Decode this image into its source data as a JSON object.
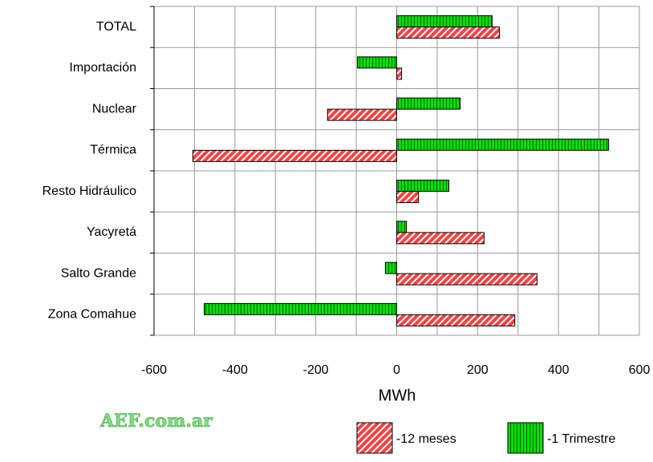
{
  "chart_data": {
    "type": "hbar",
    "xlabel": "MWh",
    "watermark": "AEF.com.ar",
    "categories": [
      "TOTAL",
      "Importación",
      "Nuclear",
      "Térmica",
      "Resto Hidráulico",
      "Yacyretá",
      "Salto Grande",
      "Zona Comahue"
    ],
    "series": [
      {
        "name": "-1 Trimestre",
        "color": "#00e000",
        "values": [
          236,
          -97,
          157,
          524,
          129,
          24,
          -28,
          -476
        ]
      },
      {
        "name": "-12 meses",
        "color": "#ff4040",
        "values": [
          254,
          12,
          -171,
          -504,
          54,
          216,
          347,
          292
        ]
      }
    ],
    "xlim": [
      -600,
      600
    ],
    "xticks": [
      -600,
      -400,
      -200,
      0,
      200,
      400,
      600
    ],
    "xminor_ticks": [
      -500,
      -300,
      -100,
      100,
      300,
      500
    ],
    "grid": true
  }
}
